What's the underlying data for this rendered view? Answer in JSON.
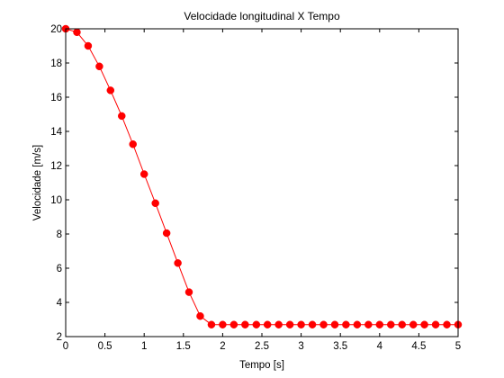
{
  "chart_data": {
    "type": "line",
    "title": "Velocidade longitudinal X Tempo",
    "xlabel": "Tempo [s]",
    "ylabel": "Velocidade [m/s]",
    "xlim": [
      0,
      5
    ],
    "ylim": [
      2,
      20
    ],
    "xticks": [
      0,
      0.5,
      1,
      1.5,
      2,
      2.5,
      3,
      3.5,
      4,
      4.5,
      5
    ],
    "yticks": [
      2,
      4,
      6,
      8,
      10,
      12,
      14,
      16,
      18,
      20
    ],
    "xtick_labels": [
      "0",
      "0.5",
      "1",
      "1.5",
      "2",
      "2.5",
      "3",
      "3.5",
      "4",
      "4.5",
      "5"
    ],
    "ytick_labels": [
      "2",
      "4",
      "6",
      "8",
      "10",
      "12",
      "14",
      "16",
      "18",
      "20"
    ],
    "grid": false,
    "legend": "none",
    "series": [
      {
        "color": "#ff0000",
        "marker": "filled-circle",
        "x": [
          0,
          0.143,
          0.286,
          0.429,
          0.571,
          0.714,
          0.857,
          1.0,
          1.143,
          1.286,
          1.429,
          1.571,
          1.714,
          1.857,
          2.0,
          2.143,
          2.286,
          2.429,
          2.571,
          2.714,
          2.857,
          3.0,
          3.143,
          3.286,
          3.429,
          3.571,
          3.714,
          3.857,
          4.0,
          4.143,
          4.286,
          4.429,
          4.571,
          4.714,
          4.857,
          5.0
        ],
        "y": [
          20.0,
          19.8,
          19.0,
          17.8,
          16.4,
          14.9,
          13.25,
          11.5,
          9.8,
          8.05,
          6.3,
          4.6,
          3.2,
          2.7,
          2.7,
          2.7,
          2.7,
          2.7,
          2.7,
          2.7,
          2.7,
          2.7,
          2.7,
          2.7,
          2.7,
          2.7,
          2.7,
          2.7,
          2.7,
          2.7,
          2.7,
          2.7,
          2.7,
          2.7,
          2.7,
          2.7
        ]
      }
    ]
  }
}
